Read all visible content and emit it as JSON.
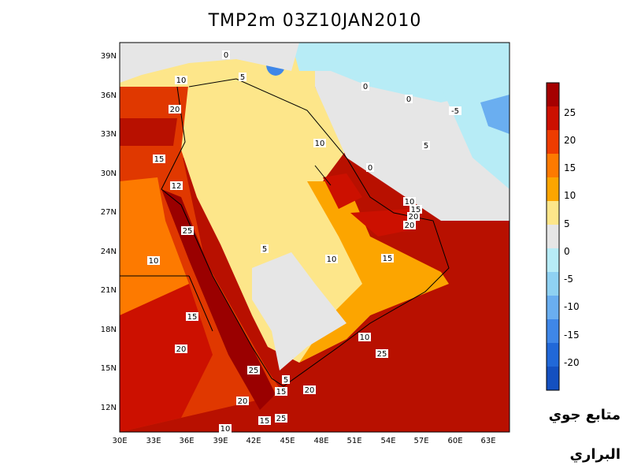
{
  "title": "TMP2m  03Z10JAN2010",
  "lat_ticks": [
    "39N",
    "36N",
    "33N",
    "30N",
    "27N",
    "24N",
    "21N",
    "18N",
    "15N",
    "12N"
  ],
  "lon_ticks": [
    "30E",
    "33E",
    "36E",
    "39E",
    "42E",
    "45E",
    "48E",
    "51E",
    "54E",
    "57E",
    "60E",
    "63E"
  ],
  "colorbar": {
    "labels": [
      "25",
      "20",
      "15",
      "10",
      "5",
      "0",
      "-5",
      "-10",
      "-15",
      "-20"
    ],
    "colors": [
      "#a50000",
      "#cc1000",
      "#ee3c00",
      "#fd7a00",
      "#fca500",
      "#fde68a",
      "#e6e6e6",
      "#b7ecf6",
      "#8fd1f2",
      "#6aaef0",
      "#3f87e8",
      "#2168d8",
      "#1450c0"
    ]
  },
  "contour_labels": [
    {
      "text": "0"
    },
    {
      "text": "5"
    },
    {
      "text": "10"
    },
    {
      "text": "20"
    },
    {
      "text": "15"
    },
    {
      "text": "10"
    },
    {
      "text": "0"
    },
    {
      "text": "0"
    },
    {
      "text": "-5"
    },
    {
      "text": "5"
    },
    {
      "text": "0"
    },
    {
      "text": "10"
    },
    {
      "text": "15"
    },
    {
      "text": "20"
    },
    {
      "text": "20"
    },
    {
      "text": "25"
    },
    {
      "text": "10"
    },
    {
      "text": "5"
    },
    {
      "text": "10"
    },
    {
      "text": "15"
    },
    {
      "text": "15"
    },
    {
      "text": "20"
    },
    {
      "text": "10"
    },
    {
      "text": "25"
    },
    {
      "text": "25"
    },
    {
      "text": "5"
    },
    {
      "text": "20"
    },
    {
      "text": "15"
    },
    {
      "text": "20"
    },
    {
      "text": "15"
    },
    {
      "text": "25"
    },
    {
      "text": "10"
    },
    {
      "text": "12"
    }
  ],
  "credit_line1": "متابع جوي",
  "credit_line2": "البراري"
}
